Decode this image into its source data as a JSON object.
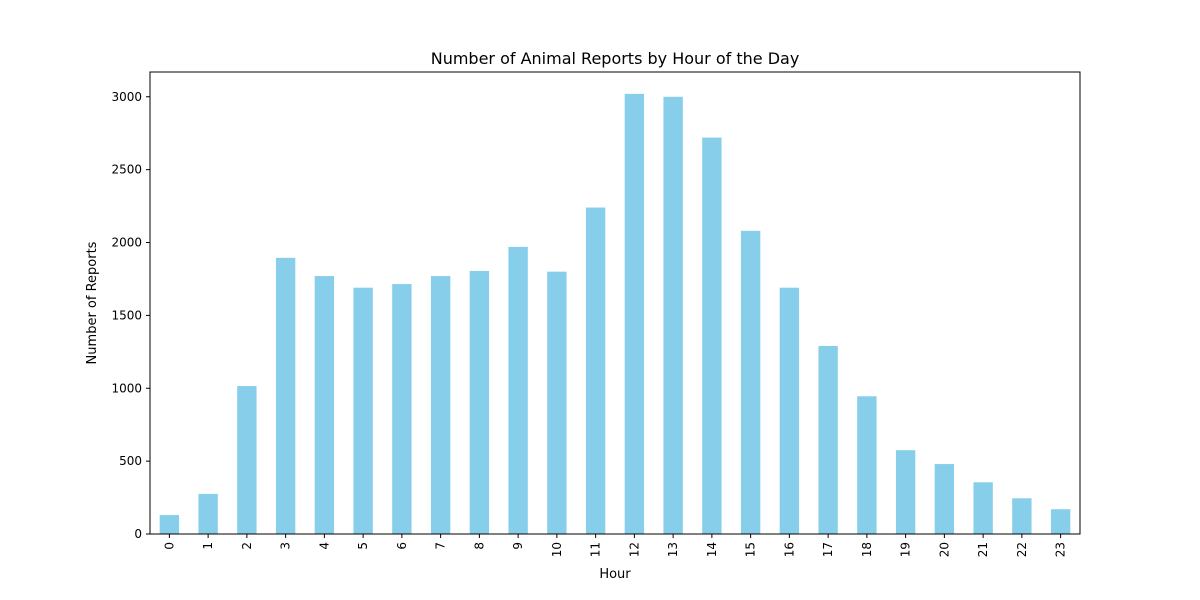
{
  "chart_data": {
    "type": "bar",
    "title": "Number of Animal Reports by Hour of the Day",
    "xlabel": "Hour",
    "ylabel": "Number of Reports",
    "categories": [
      "0",
      "1",
      "2",
      "3",
      "4",
      "5",
      "6",
      "7",
      "8",
      "9",
      "10",
      "11",
      "12",
      "13",
      "14",
      "15",
      "16",
      "17",
      "18",
      "19",
      "20",
      "21",
      "22",
      "23"
    ],
    "values": [
      130,
      275,
      1015,
      1895,
      1770,
      1690,
      1715,
      1770,
      1805,
      1970,
      1800,
      2240,
      3020,
      3000,
      2720,
      2080,
      1690,
      1290,
      945,
      575,
      480,
      355,
      245,
      170
    ],
    "ylim": [
      0,
      3170
    ],
    "yticks": [
      0,
      500,
      1000,
      1500,
      2000,
      2500,
      3000
    ],
    "bar_color": "#87ceeb",
    "grid": false,
    "legend": "none"
  }
}
